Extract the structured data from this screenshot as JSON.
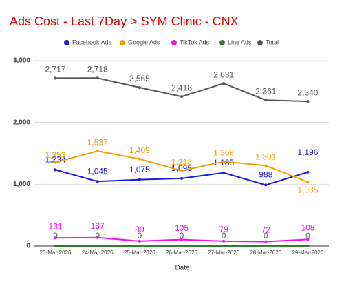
{
  "chart_data": {
    "type": "line",
    "title": "Ads Cost - Last 7Day > SYM Clinic - CNX",
    "x_label": "Date",
    "categories": [
      "23-Mar-2026",
      "24-Mar-2026",
      "25-Mar-2026",
      "26-Mar-2026",
      "27-Mar-2026",
      "28-Mar-2026",
      "29-Mar-2026"
    ],
    "series": [
      {
        "name": "Facebook Ads",
        "color": "#1a1ae0",
        "values": [
          1234,
          1045,
          1075,
          1095,
          1185,
          988,
          1196
        ],
        "value_labels": [
          "1,234",
          "1,045",
          "1,075",
          "1,095",
          "1,185",
          "988",
          "1,196"
        ]
      },
      {
        "name": "Google Ads",
        "color": "#f5a000",
        "values": [
          1353,
          1537,
          1409,
          1218,
          1368,
          1301,
          1035
        ],
        "value_labels": [
          "1,353",
          "1,537",
          "1,409",
          "1,218",
          "1,368",
          "1,301",
          "1,035"
        ]
      },
      {
        "name": "TikTok Ads",
        "color": "#f010f0",
        "values": [
          131,
          137,
          80,
          105,
          79,
          72,
          108
        ]
      },
      {
        "name": "Line Ads",
        "color": "#2e7d32",
        "values": [
          0,
          0,
          0,
          0,
          0,
          0,
          0
        ]
      },
      {
        "name": "Total",
        "color": "#555555",
        "values": [
          2717,
          2718,
          2565,
          2418,
          2631,
          2361,
          2340
        ],
        "value_labels": [
          "2,717",
          "2,718",
          "2,565",
          "2,418",
          "2,631",
          "2,361",
          "2,340"
        ]
      }
    ],
    "ylim": [
      0,
      3000
    ],
    "yticks": [
      0,
      {
        "value": 1000,
        "label": "1,000"
      },
      {
        "value": 2000,
        "label": "2,000"
      },
      {
        "value": 3000,
        "label": "3,000"
      }
    ],
    "grid": true,
    "legend": "top"
  }
}
